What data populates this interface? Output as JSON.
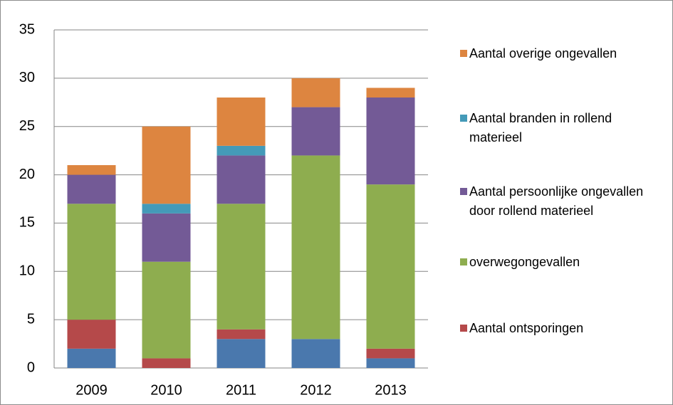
{
  "chart_data": {
    "type": "stacked_bar",
    "categories": [
      "2009",
      "2010",
      "2011",
      "2012",
      "2013"
    ],
    "series": [
      {
        "name": null,
        "color": "#4a78ad",
        "values": [
          2,
          0,
          3,
          3,
          1
        ]
      },
      {
        "name": "Aantal ontsporingen",
        "color": "#b5494a",
        "values": [
          3,
          1,
          1,
          0,
          1
        ]
      },
      {
        "name": "overwegongevallen",
        "color": "#8ead4f",
        "values": [
          12,
          10,
          13,
          19,
          17
        ]
      },
      {
        "name": "Aantal persoonlijke ongevallen door rollend materieel",
        "color": "#735a96",
        "values": [
          3,
          5,
          5,
          5,
          9
        ]
      },
      {
        "name": "Aantal branden in rollend materieel",
        "color": "#449ab8",
        "values": [
          0,
          1,
          1,
          0,
          0
        ]
      },
      {
        "name": "Aantal overige ongevallen",
        "color": "#dd8540",
        "values": [
          1,
          8,
          5,
          3,
          1
        ]
      }
    ],
    "ylim": [
      0,
      35
    ],
    "yticks": [
      0,
      5,
      10,
      15,
      20,
      25,
      30,
      35
    ],
    "grid": true,
    "legend": "right"
  }
}
